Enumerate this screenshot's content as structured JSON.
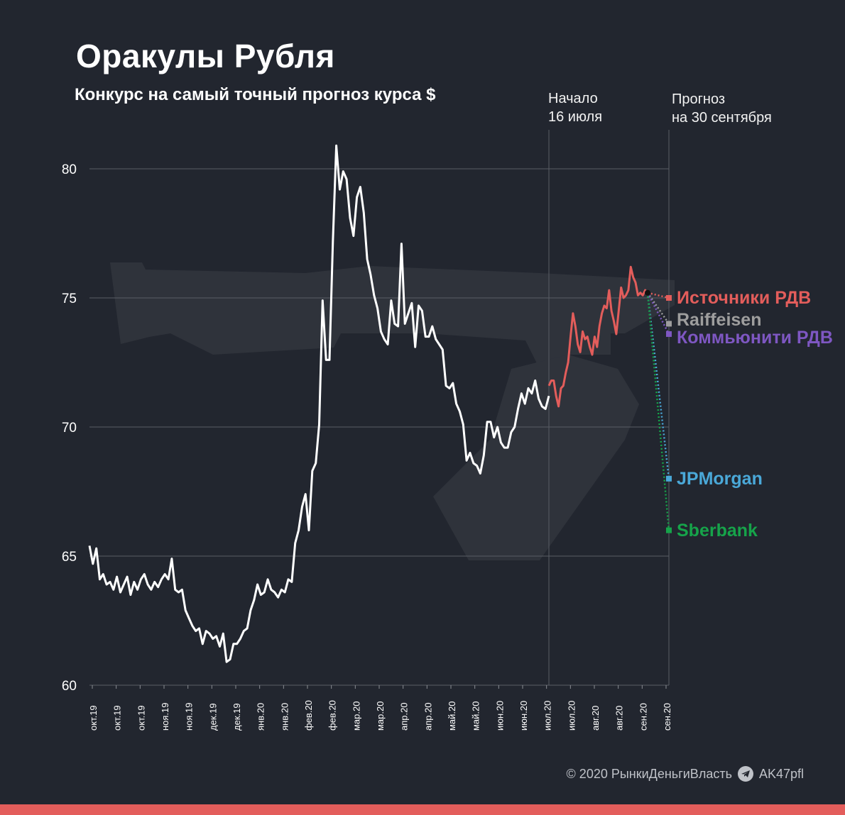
{
  "header": {
    "title": "Оракулы Рубля",
    "subtitle": "Конкурс на самый точный прогноз курса $"
  },
  "annotations": {
    "start_line1": "Начало",
    "start_line2": "16 июля",
    "forecast_line1": "Прогноз",
    "forecast_line2": "на 30 сентября"
  },
  "footer": {
    "copyright": "© 2020  РынкиДеньгиВласть",
    "telegram": "AK47pfl",
    "telegram_icon": "telegram-icon"
  },
  "colors": {
    "background": "#22262f",
    "history_line": "#ffffff",
    "contest_line": "#e35d5b",
    "bottom_bar": "#e35d5b"
  },
  "chart_data": {
    "type": "line",
    "title": "Оракулы Рубля",
    "subtitle": "Конкурс на самый точный прогноз курса $",
    "ylim": [
      60,
      81
    ],
    "yticks": [
      60,
      65,
      70,
      75,
      80
    ],
    "grid": true,
    "x_tick_labels": [
      "окт.19",
      "окт.19",
      "окт.19",
      "ноя.19",
      "ноя.19",
      "дек.19",
      "дек.19",
      "янв.20",
      "янв.20",
      "фев.20",
      "фев.20",
      "мар.20",
      "мар.20",
      "апр.20",
      "апр.20",
      "май.20",
      "май.20",
      "июн.20",
      "июн.20",
      "июл.20",
      "июл.20",
      "авг.20",
      "авг.20",
      "сен.20",
      "сен.20"
    ],
    "series": [
      {
        "name": "",
        "color": "#ffffff",
        "values": [
          65.4,
          64.7,
          65.3,
          64.1,
          64.3,
          63.9,
          64.0,
          63.7,
          64.2,
          63.6,
          63.9,
          64.2,
          63.5,
          64.0,
          63.7,
          64.1,
          64.3,
          63.9,
          63.7,
          64.0,
          63.8,
          64.1,
          64.3,
          64.1,
          64.9,
          63.7,
          63.6,
          63.7,
          62.9,
          62.6,
          62.3,
          62.1,
          62.2,
          61.6,
          62.1,
          62.0,
          61.8,
          61.9,
          61.5,
          62.0,
          60.9,
          61.0,
          61.6,
          61.6,
          61.8,
          62.1,
          62.2,
          62.9,
          63.3,
          63.9,
          63.5,
          63.6,
          64.1,
          63.7,
          63.6,
          63.4,
          63.7,
          63.6,
          64.1,
          64.0,
          65.5,
          66.0,
          66.9,
          67.4,
          66.0,
          68.3,
          68.6,
          70.1,
          74.9,
          72.6,
          72.6,
          77.2,
          80.9,
          79.2,
          79.9,
          79.6,
          78.1,
          77.4,
          78.9,
          79.3,
          78.3,
          76.5,
          75.9,
          75.1,
          74.6,
          73.7,
          73.4,
          73.2,
          74.9,
          74.0,
          73.9,
          77.1,
          74.0,
          74.4,
          74.8,
          73.1,
          74.7,
          74.5,
          73.5,
          73.5,
          73.9,
          73.4,
          73.2,
          73.0,
          71.6,
          71.5,
          71.7,
          70.9,
          70.6,
          70.1,
          68.7,
          69.0,
          68.6,
          68.5,
          68.2,
          68.9,
          70.2,
          70.2,
          69.6,
          70.0,
          69.4,
          69.2,
          69.2,
          69.8,
          70.0,
          70.7,
          71.3,
          70.9,
          71.5,
          71.3,
          71.8,
          71.1,
          70.8,
          70.7,
          71.2
        ]
      },
      {
        "name": "",
        "color": "#e35d5b",
        "values": [
          71.6,
          71.8,
          71.8,
          71.2,
          70.8,
          71.5,
          71.6,
          72.1,
          72.5,
          73.5,
          74.4,
          73.9,
          73.2,
          72.9,
          73.7,
          73.4,
          73.5,
          73.1,
          72.8,
          73.5,
          73.1,
          73.9,
          74.4,
          74.7,
          74.6,
          75.3,
          74.5,
          74.1,
          73.6,
          74.5,
          75.4,
          75.0,
          75.1,
          75.3,
          76.2,
          75.8,
          75.6,
          75.1,
          75.2,
          75.1,
          75.3,
          75.2
        ]
      }
    ],
    "forecasts": [
      {
        "name": "Источники РДВ",
        "value": 75.0,
        "color": "#e35d5b"
      },
      {
        "name": "Raiffeisen",
        "value": 74.0,
        "color": "#9e9e9e"
      },
      {
        "name": "Коммьюнити РДВ",
        "value": 73.6,
        "color": "#7e57c2"
      },
      {
        "name": "JPMorgan",
        "value": 68.0,
        "color": "#4aa8d8"
      },
      {
        "name": "Sberbank",
        "value": 66.0,
        "color": "#16a34a"
      }
    ]
  }
}
